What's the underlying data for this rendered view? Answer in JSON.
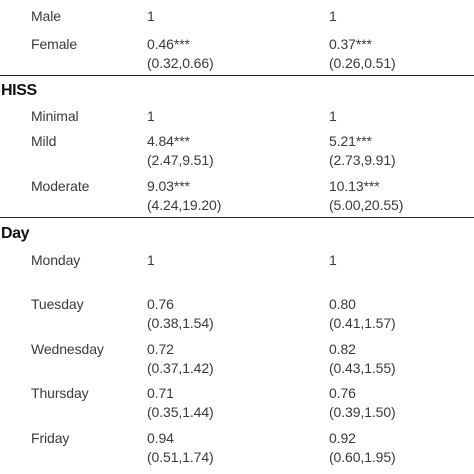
{
  "sections": [
    {
      "heading": "",
      "rows": [
        {
          "label": "Male",
          "col1": [
            "1"
          ],
          "col2": [
            "1"
          ]
        },
        {
          "label": "Female",
          "col1": [
            "0.46***",
            "(0.32,0.66)"
          ],
          "col2": [
            "0.37***",
            "(0.26,0.51)"
          ]
        }
      ]
    },
    {
      "heading": "HISS",
      "rows": [
        {
          "label": "Minimal",
          "col1": [
            "1"
          ],
          "col2": [
            "1"
          ]
        },
        {
          "label": "Mild",
          "col1": [
            "4.84***",
            "(2.47,9.51)"
          ],
          "col2": [
            "5.21***",
            "(2.73,9.91)"
          ]
        },
        {
          "label": "Moderate",
          "col1": [
            "9.03***",
            "(4.24,19.20)"
          ],
          "col2": [
            "10.13***",
            "(5.00,20.55)"
          ]
        }
      ]
    },
    {
      "heading": "Day",
      "rows": [
        {
          "label": "Monday",
          "col1": [
            "1"
          ],
          "col2": [
            "1"
          ]
        },
        {
          "label": "Tuesday",
          "col1": [
            "0.76",
            "(0.38,1.54)"
          ],
          "col2": [
            "0.80",
            "(0.41,1.57)"
          ]
        },
        {
          "label": "Wednesday",
          "col1": [
            "0.72",
            "(0.37,1.42)"
          ],
          "col2": [
            "0.82",
            "(0.43,1.55)"
          ]
        },
        {
          "label": "Thursday",
          "col1": [
            "0.71",
            "(0.35,1.44)"
          ],
          "col2": [
            "0.76",
            "(0.39,1.50)"
          ]
        },
        {
          "label": "Friday",
          "col1": [
            "0.94",
            "(0.51,1.74)"
          ],
          "col2": [
            "0.92",
            "(0.60,1.95)"
          ]
        }
      ]
    }
  ]
}
